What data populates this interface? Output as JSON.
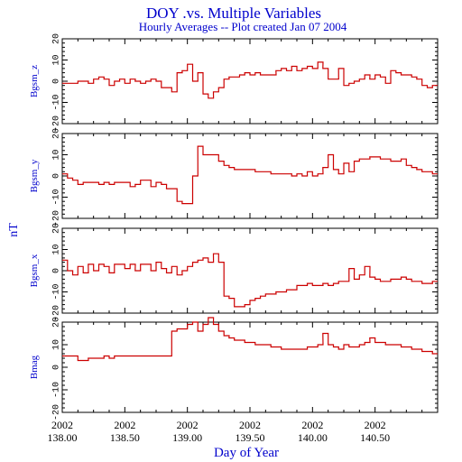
{
  "chart_data": {
    "type": "line",
    "style": "step",
    "title": "DOY .vs. Multiple Variables",
    "subtitle": "Hourly Averages -- Plot created Jan 07 2004",
    "xlabel": "Day of Year",
    "shared_ylabel": "nT",
    "xlim": [
      138.0,
      141.0
    ],
    "x_ticks": [
      {
        "year": "2002",
        "doy": "138.00"
      },
      {
        "year": "2002",
        "doy": "138.50"
      },
      {
        "year": "2002",
        "doy": "139.00"
      },
      {
        "year": "2002",
        "doy": "139.50"
      },
      {
        "year": "2002",
        "doy": "140.00"
      },
      {
        "year": "2002",
        "doy": "140.50"
      }
    ],
    "colors": {
      "title": "#0000cc",
      "series": "#cc0000",
      "axes": "#000000"
    },
    "panels": [
      {
        "name": "Bgsm_z",
        "ylabel": "Bgsm_z",
        "ylim": [
          -20,
          20
        ],
        "yticks": [
          "20",
          "10",
          "0",
          "-10",
          "-20"
        ],
        "x": [
          138.0,
          138.042,
          138.083,
          138.125,
          138.167,
          138.208,
          138.25,
          138.292,
          138.333,
          138.375,
          138.417,
          138.458,
          138.5,
          138.542,
          138.583,
          138.625,
          138.667,
          138.708,
          138.75,
          138.792,
          138.833,
          138.875,
          138.917,
          138.958,
          139.0,
          139.042,
          139.083,
          139.125,
          139.167,
          139.208,
          139.25,
          139.292,
          139.333,
          139.375,
          139.417,
          139.458,
          139.5,
          139.542,
          139.583,
          139.625,
          139.667,
          139.708,
          139.75,
          139.792,
          139.833,
          139.875,
          139.917,
          139.958,
          140.0,
          140.042,
          140.083,
          140.125,
          140.167,
          140.208,
          140.25,
          140.292,
          140.333,
          140.375,
          140.417,
          140.458,
          140.5,
          140.542,
          140.583,
          140.625,
          140.667,
          140.708,
          140.75,
          140.792,
          140.833,
          140.875,
          140.917,
          140.958
        ],
        "values": [
          -1,
          -1,
          -1,
          0,
          0,
          -1,
          1,
          2,
          1,
          -2,
          0,
          1,
          -1,
          1,
          0,
          -1,
          0,
          1,
          0,
          -3,
          -3,
          -5,
          4,
          5,
          8,
          0,
          4,
          -6,
          -8,
          -5,
          -3,
          1,
          2,
          2,
          3,
          4,
          3,
          4,
          3,
          3,
          3,
          5,
          6,
          5,
          7,
          5,
          6,
          7,
          6,
          9,
          6,
          1,
          1,
          6,
          -2,
          -1,
          0,
          1,
          3,
          1,
          3,
          2,
          -1,
          5,
          4,
          3,
          3,
          2,
          1,
          -2,
          -3,
          -2
        ]
      },
      {
        "name": "Bgsm_y",
        "ylabel": "Bgsm_y",
        "ylim": [
          -20,
          20
        ],
        "yticks": [
          "20",
          "10",
          "0",
          "-10",
          "-20"
        ],
        "x": [
          138.0,
          138.042,
          138.083,
          138.125,
          138.167,
          138.208,
          138.25,
          138.292,
          138.333,
          138.375,
          138.417,
          138.458,
          138.5,
          138.542,
          138.583,
          138.625,
          138.667,
          138.708,
          138.75,
          138.792,
          138.833,
          138.875,
          138.917,
          138.958,
          139.0,
          139.042,
          139.083,
          139.125,
          139.167,
          139.208,
          139.25,
          139.292,
          139.333,
          139.375,
          139.417,
          139.458,
          139.5,
          139.542,
          139.583,
          139.625,
          139.667,
          139.708,
          139.75,
          139.792,
          139.833,
          139.875,
          139.917,
          139.958,
          140.0,
          140.042,
          140.083,
          140.125,
          140.167,
          140.208,
          140.25,
          140.292,
          140.333,
          140.375,
          140.417,
          140.458,
          140.5,
          140.542,
          140.583,
          140.625,
          140.667,
          140.708,
          140.75,
          140.792,
          140.833,
          140.875,
          140.917,
          140.958
        ],
        "values": [
          1,
          -1,
          -2,
          -4,
          -3,
          -3,
          -3,
          -4,
          -3,
          -4,
          -3,
          -3,
          -3,
          -5,
          -4,
          -2,
          -2,
          -5,
          -3,
          -4,
          -6,
          -6,
          -12,
          -13,
          -13,
          0,
          14,
          10,
          10,
          10,
          7,
          5,
          4,
          3,
          3,
          3,
          3,
          2,
          2,
          2,
          1,
          1,
          1,
          1,
          0,
          1,
          0,
          2,
          0,
          1,
          4,
          10,
          3,
          1,
          6,
          2,
          7,
          8,
          8,
          9,
          9,
          8,
          8,
          7,
          7,
          8,
          5,
          4,
          3,
          2,
          2,
          1
        ]
      },
      {
        "name": "Bgsm_x",
        "ylabel": "Bgsm_x",
        "ylim": [
          -20,
          20
        ],
        "yticks": [
          "20",
          "10",
          "0",
          "-10",
          "-20"
        ],
        "x": [
          138.0,
          138.042,
          138.083,
          138.125,
          138.167,
          138.208,
          138.25,
          138.292,
          138.333,
          138.375,
          138.417,
          138.458,
          138.5,
          138.542,
          138.583,
          138.625,
          138.667,
          138.708,
          138.75,
          138.792,
          138.833,
          138.875,
          138.917,
          138.958,
          139.0,
          139.042,
          139.083,
          139.125,
          139.167,
          139.208,
          139.25,
          139.292,
          139.333,
          139.375,
          139.417,
          139.458,
          139.5,
          139.542,
          139.583,
          139.625,
          139.667,
          139.708,
          139.75,
          139.792,
          139.833,
          139.875,
          139.917,
          139.958,
          140.0,
          140.042,
          140.083,
          140.125,
          140.167,
          140.208,
          140.25,
          140.292,
          140.333,
          140.375,
          140.417,
          140.458,
          140.5,
          140.542,
          140.583,
          140.625,
          140.667,
          140.708,
          140.75,
          140.792,
          140.833,
          140.875,
          140.917,
          140.958
        ],
        "values": [
          5,
          0,
          -2,
          2,
          -1,
          3,
          0,
          3,
          2,
          -1,
          3,
          3,
          1,
          3,
          0,
          3,
          3,
          0,
          4,
          1,
          -1,
          2,
          -2,
          0,
          2,
          4,
          5,
          6,
          4,
          8,
          4,
          -12,
          -13,
          -17,
          -17,
          -16,
          -14,
          -13,
          -12,
          -11,
          -11,
          -10,
          -10,
          -9,
          -9,
          -7,
          -7,
          -6,
          -7,
          -7,
          -6,
          -7,
          -6,
          -5,
          -5,
          1,
          -4,
          -2,
          2,
          -3,
          -4,
          -5,
          -5,
          -4,
          -4,
          -3,
          -4,
          -5,
          -5,
          -6,
          -6,
          -5
        ]
      },
      {
        "name": "Bmag",
        "ylabel": "Bmag",
        "ylim": [
          -20,
          20
        ],
        "yticks": [
          "20",
          "10",
          "0",
          "-10",
          "-20"
        ],
        "x": [
          138.0,
          138.042,
          138.083,
          138.125,
          138.167,
          138.208,
          138.25,
          138.292,
          138.333,
          138.375,
          138.417,
          138.458,
          138.5,
          138.542,
          138.583,
          138.625,
          138.667,
          138.708,
          138.75,
          138.792,
          138.833,
          138.875,
          138.917,
          138.958,
          139.0,
          139.042,
          139.083,
          139.125,
          139.167,
          139.208,
          139.25,
          139.292,
          139.333,
          139.375,
          139.417,
          139.458,
          139.5,
          139.542,
          139.583,
          139.625,
          139.667,
          139.708,
          139.75,
          139.792,
          139.833,
          139.875,
          139.917,
          139.958,
          140.0,
          140.042,
          140.083,
          140.125,
          140.167,
          140.208,
          140.25,
          140.292,
          140.333,
          140.375,
          140.417,
          140.458,
          140.5,
          140.542,
          140.583,
          140.625,
          140.667,
          140.708,
          140.75,
          140.792,
          140.833,
          140.875,
          140.917,
          140.958
        ],
        "values": [
          5,
          5,
          5,
          3,
          3,
          4,
          4,
          4,
          5,
          4,
          5,
          5,
          5,
          5,
          5,
          5,
          5,
          5,
          5,
          5,
          5,
          16,
          17,
          17,
          19,
          20,
          16,
          19,
          22,
          19,
          16,
          14,
          13,
          12,
          12,
          11,
          11,
          10,
          10,
          10,
          9,
          9,
          8,
          8,
          8,
          8,
          8,
          9,
          9,
          10,
          15,
          10,
          9,
          8,
          10,
          9,
          9,
          10,
          11,
          13,
          11,
          11,
          10,
          10,
          10,
          9,
          9,
          8,
          8,
          7,
          7,
          6
        ]
      }
    ]
  }
}
